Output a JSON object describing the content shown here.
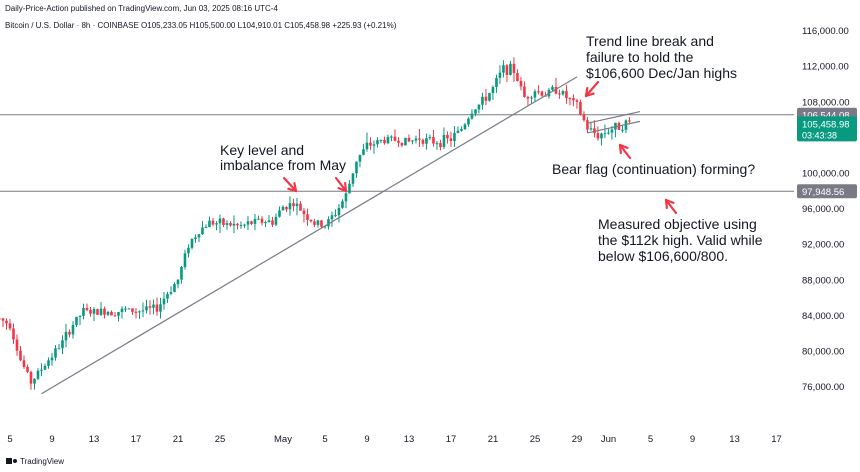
{
  "header": {
    "publisher_line": "Daily-Price-Action published on TradingView.com, Jun 03, 2025 08:16 UTC-4",
    "symbol_line": "Bitcoin / U.S. Dollar · 8h · COINBASE  O105,233.05 H105,500.00 L104,910.01 C105,458.98 +225.93 (+0.21%)"
  },
  "chart_data": {
    "type": "candlestick",
    "y_ticks": [
      {
        "value": 76000,
        "label": "76,000.00"
      },
      {
        "value": 80000,
        "label": "80,000.00"
      },
      {
        "value": 84000,
        "label": "84,000.00"
      },
      {
        "value": 88000,
        "label": "88,000.00"
      },
      {
        "value": 92000,
        "label": "92,000.00"
      },
      {
        "value": 96000,
        "label": "96,000.00"
      },
      {
        "value": 100000,
        "label": "100,000.00"
      },
      {
        "value": 108000,
        "label": "108,000.00"
      },
      {
        "value": 112000,
        "label": "112,000.00"
      },
      {
        "value": 116000,
        "label": "116,000.00"
      }
    ],
    "x_ticks": [
      {
        "day": -26,
        "label": "5"
      },
      {
        "day": -22,
        "label": "9"
      },
      {
        "day": -18,
        "label": "13"
      },
      {
        "day": -14,
        "label": "17"
      },
      {
        "day": -10,
        "label": "21"
      },
      {
        "day": -6,
        "label": "25"
      },
      {
        "day": 0,
        "label": "May"
      },
      {
        "day": 4,
        "label": "5"
      },
      {
        "day": 8,
        "label": "9"
      },
      {
        "day": 12,
        "label": "13"
      },
      {
        "day": 16,
        "label": "17"
      },
      {
        "day": 20,
        "label": "21"
      },
      {
        "day": 24,
        "label": "25"
      },
      {
        "day": 28,
        "label": "29"
      },
      {
        "day": 31,
        "label": "Jun"
      },
      {
        "day": 35,
        "label": "5"
      },
      {
        "day": 39,
        "label": "9"
      },
      {
        "day": 43,
        "label": "13"
      },
      {
        "day": 47,
        "label": "17"
      }
    ],
    "price_labels": [
      {
        "value": 106544.08,
        "label": "106,544.08",
        "style": "gray"
      },
      {
        "value": 105458.98,
        "label": "105,458.98",
        "sub": "03:43:38",
        "style": "green"
      },
      {
        "value": 97948.56,
        "label": "97,948.56",
        "style": "gray"
      }
    ],
    "horizontal_lines": [
      106544.08,
      97948.56
    ],
    "trendlines": [
      {
        "from": {
          "day": -23,
          "value": 75200
        },
        "to": {
          "day": 28,
          "value": 110800
        }
      },
      {
        "from": {
          "day": 29,
          "value": 104500
        },
        "to": {
          "day": 34,
          "value": 105800
        }
      },
      {
        "from": {
          "day": 29,
          "value": 105600
        },
        "to": {
          "day": 34,
          "value": 106900
        }
      }
    ],
    "anchors": [
      {
        "day": -27,
        "value": 83600
      },
      {
        "day": -26,
        "value": 83000
      },
      {
        "day": -25,
        "value": 79000
      },
      {
        "day": -24,
        "value": 76500
      },
      {
        "day": -23,
        "value": 78000
      },
      {
        "day": -22,
        "value": 79500
      },
      {
        "day": -21,
        "value": 81000
      },
      {
        "day": -20,
        "value": 83000
      },
      {
        "day": -19,
        "value": 84500
      },
      {
        "day": -18,
        "value": 84300
      },
      {
        "day": -17,
        "value": 84500
      },
      {
        "day": -16,
        "value": 84400
      },
      {
        "day": -15,
        "value": 84600
      },
      {
        "day": -14,
        "value": 84500
      },
      {
        "day": -13,
        "value": 84600
      },
      {
        "day": -12,
        "value": 84800
      },
      {
        "day": -11,
        "value": 86500
      },
      {
        "day": -10,
        "value": 88000
      },
      {
        "day": -9,
        "value": 92000
      },
      {
        "day": -8,
        "value": 93500
      },
      {
        "day": -7,
        "value": 94500
      },
      {
        "day": -6,
        "value": 94300
      },
      {
        "day": -5,
        "value": 94200
      },
      {
        "day": -4,
        "value": 94000
      },
      {
        "day": -3,
        "value": 94400
      },
      {
        "day": -2,
        "value": 94600
      },
      {
        "day": -1,
        "value": 94500
      },
      {
        "day": 0,
        "value": 96200
      },
      {
        "day": 1,
        "value": 96600
      },
      {
        "day": 2,
        "value": 95500
      },
      {
        "day": 3,
        "value": 94300
      },
      {
        "day": 4,
        "value": 94100
      },
      {
        "day": 5,
        "value": 95500
      },
      {
        "day": 6,
        "value": 97500
      },
      {
        "day": 7,
        "value": 101500
      },
      {
        "day": 8,
        "value": 103000
      },
      {
        "day": 9,
        "value": 103500
      },
      {
        "day": 10,
        "value": 103800
      },
      {
        "day": 11,
        "value": 103700
      },
      {
        "day": 12,
        "value": 103500
      },
      {
        "day": 13,
        "value": 104000
      },
      {
        "day": 14,
        "value": 103500
      },
      {
        "day": 15,
        "value": 103600
      },
      {
        "day": 16,
        "value": 103800
      },
      {
        "day": 17,
        "value": 105000
      },
      {
        "day": 18,
        "value": 107000
      },
      {
        "day": 19,
        "value": 108000
      },
      {
        "day": 20,
        "value": 109500
      },
      {
        "day": 21,
        "value": 111800
      },
      {
        "day": 22,
        "value": 111500
      },
      {
        "day": 23,
        "value": 108500
      },
      {
        "day": 24,
        "value": 109300
      },
      {
        "day": 25,
        "value": 108800
      },
      {
        "day": 26,
        "value": 109500
      },
      {
        "day": 27,
        "value": 108500
      },
      {
        "day": 28,
        "value": 107500
      },
      {
        "day": 29,
        "value": 105000
      },
      {
        "day": 30,
        "value": 104200
      },
      {
        "day": 31,
        "value": 104800
      },
      {
        "day": 32,
        "value": 105300
      },
      {
        "day": 33,
        "value": 105700
      },
      {
        "day": 33.3,
        "value": 105459
      }
    ],
    "candle_spacing_days": 0.3333,
    "colors": {
      "up": "#089981",
      "down": "#f23645",
      "line": "#787b86",
      "arrow": "#f23645",
      "price_tag": "#089981",
      "gray_tag": "#787b86"
    }
  },
  "annotations": [
    {
      "lines": [
        "Trend line break and",
        "failure to hold the",
        "$106,600 Dec/Jan highs"
      ]
    },
    {
      "lines": [
        "Key level and",
        "imbalance from May"
      ]
    },
    {
      "lines": [
        "Bear flag (continuation) forming?"
      ]
    },
    {
      "lines": [
        "Measured objective using",
        "the $112k high. Valid while",
        "below $106,600/800."
      ]
    }
  ],
  "footer": {
    "brand": "TradingView"
  }
}
